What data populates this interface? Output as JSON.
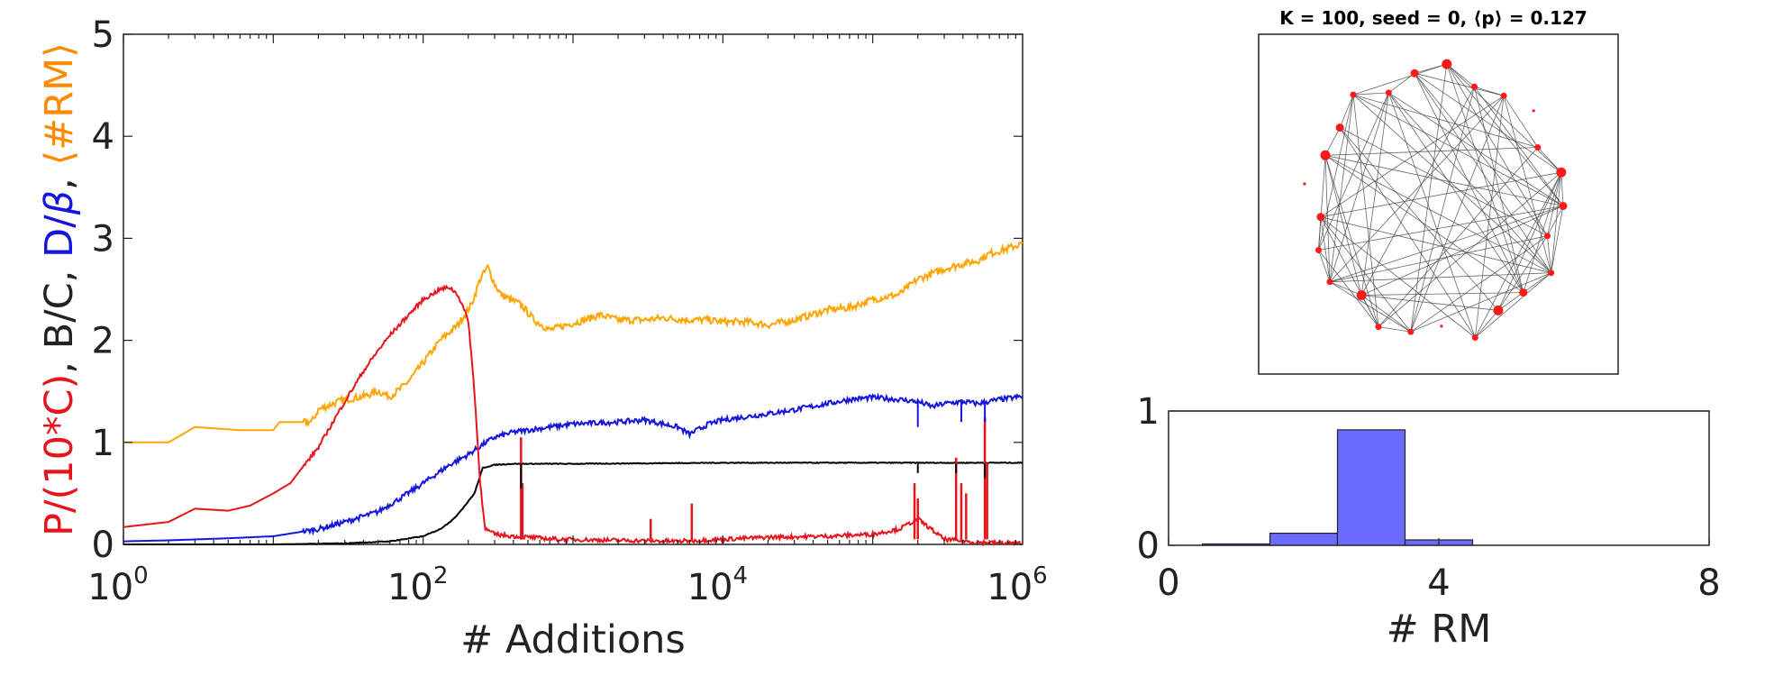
{
  "chart_data": [
    {
      "type": "line",
      "xscale": "log",
      "xlim": [
        1,
        1000000
      ],
      "ylim": [
        0,
        5
      ],
      "grid": false,
      "xlabel": "# Additions",
      "ylabel_parts": [
        {
          "text": "P/(10*C)",
          "color": "#e8141b"
        },
        {
          "text": ", B/C, ",
          "color": "#222222"
        },
        {
          "text": "D/",
          "color": "#1515e0"
        },
        {
          "text": "β",
          "color": "#1515e0",
          "italic": true
        },
        {
          "text": ", ",
          "color": "#222222"
        },
        {
          "text": "⟨#RM⟩",
          "color": "#ff8a00"
        }
      ],
      "xtick_labels": [
        {
          "value": 1,
          "base": "10",
          "exp": "0"
        },
        {
          "value": 100,
          "base": "10",
          "exp": "2"
        },
        {
          "value": 10000,
          "base": "10",
          "exp": "4"
        },
        {
          "value": 1000000,
          "base": "10",
          "exp": "6"
        }
      ],
      "ytick_labels": [
        "0",
        "1",
        "2",
        "3",
        "4",
        "5"
      ],
      "yticks": [
        0,
        1,
        2,
        3,
        4,
        5
      ],
      "series": [
        {
          "key": "rm",
          "color": "#ffa500",
          "x": [
            1,
            2,
            3,
            6,
            10,
            11,
            18,
            20,
            25,
            30,
            40,
            50,
            60,
            70,
            80,
            100,
            130,
            170,
            210,
            240,
            270,
            300,
            330,
            380,
            450,
            550,
            700,
            900,
            1200,
            1500,
            2000,
            3000,
            4000,
            6000,
            8000,
            10000,
            15000,
            20000,
            30000,
            50000,
            70000,
            100000,
            150000,
            200000,
            300000,
            400000,
            500000,
            600000,
            800000,
            1000000
          ],
          "y": [
            1.0,
            1.0,
            1.15,
            1.12,
            1.12,
            1.2,
            1.2,
            1.32,
            1.38,
            1.42,
            1.45,
            1.5,
            1.45,
            1.52,
            1.6,
            1.78,
            2.0,
            2.15,
            2.35,
            2.6,
            2.72,
            2.55,
            2.45,
            2.4,
            2.35,
            2.2,
            2.1,
            2.15,
            2.2,
            2.25,
            2.2,
            2.2,
            2.22,
            2.2,
            2.2,
            2.18,
            2.18,
            2.15,
            2.2,
            2.3,
            2.32,
            2.4,
            2.45,
            2.6,
            2.7,
            2.75,
            2.78,
            2.85,
            2.9,
            2.95
          ]
        },
        {
          "key": "d",
          "color": "#1515e0",
          "x": [
            1,
            2,
            5,
            10,
            20,
            30,
            50,
            70,
            100,
            150,
            200,
            250,
            300,
            400,
            500,
            700,
            1000,
            2000,
            3000,
            5000,
            6000,
            8000,
            10000,
            20000,
            30000,
            50000,
            70000,
            100000,
            150000,
            200000,
            250000,
            300000,
            400000,
            500000,
            700000,
            1000000
          ],
          "y": [
            0.03,
            0.04,
            0.06,
            0.08,
            0.15,
            0.22,
            0.32,
            0.45,
            0.6,
            0.78,
            0.88,
            0.98,
            1.05,
            1.1,
            1.12,
            1.15,
            1.18,
            1.2,
            1.22,
            1.15,
            1.08,
            1.18,
            1.22,
            1.28,
            1.32,
            1.38,
            1.42,
            1.44,
            1.42,
            1.4,
            1.35,
            1.38,
            1.4,
            1.38,
            1.42,
            1.45
          ]
        },
        {
          "key": "b",
          "color": "#000000",
          "x": [
            1,
            10,
            30,
            60,
            100,
            130,
            160,
            190,
            220,
            250,
            300,
            400,
            1000,
            10000,
            100000,
            1000000
          ],
          "y": [
            0.0,
            0.0,
            0.01,
            0.03,
            0.08,
            0.15,
            0.25,
            0.38,
            0.5,
            0.75,
            0.78,
            0.79,
            0.79,
            0.8,
            0.8,
            0.8
          ]
        },
        {
          "key": "p",
          "color": "#e8141b",
          "x": [
            1,
            2,
            3,
            5,
            7,
            10,
            13,
            15,
            20,
            25,
            30,
            40,
            50,
            60,
            80,
            100,
            130,
            150,
            170,
            200,
            220,
            240,
            260,
            300,
            400,
            800,
            2000,
            5000,
            10000,
            20000,
            50000,
            100000,
            150000,
            200000,
            300000,
            500000,
            1000000
          ],
          "y": [
            0.17,
            0.22,
            0.35,
            0.33,
            0.38,
            0.5,
            0.6,
            0.72,
            0.95,
            1.2,
            1.4,
            1.7,
            1.9,
            2.05,
            2.25,
            2.4,
            2.5,
            2.52,
            2.45,
            2.2,
            1.5,
            0.6,
            0.15,
            0.1,
            0.08,
            0.05,
            0.04,
            0.03,
            0.05,
            0.07,
            0.08,
            0.1,
            0.15,
            0.25,
            0.05,
            0.02,
            0.01
          ]
        }
      ],
      "spikes": {
        "p": [
          {
            "x": 450,
            "y": 1.05
          },
          {
            "x": 460,
            "y": 0.6
          },
          {
            "x": 3300,
            "y": 0.25
          },
          {
            "x": 6200,
            "y": 0.4
          },
          {
            "x": 190000,
            "y": 0.6
          },
          {
            "x": 200000,
            "y": 0.45
          },
          {
            "x": 360000,
            "y": 0.85
          },
          {
            "x": 390000,
            "y": 0.6
          },
          {
            "x": 420000,
            "y": 0.5
          },
          {
            "x": 560000,
            "y": 1.25
          },
          {
            "x": 580000,
            "y": 0.8
          }
        ],
        "b_dips": [
          {
            "x": 450,
            "y": 0.55
          },
          {
            "x": 200000,
            "y": 0.7
          },
          {
            "x": 360000,
            "y": 0.7
          },
          {
            "x": 560000,
            "y": 0.65
          }
        ],
        "d_dips": [
          {
            "x": 200000,
            "y": 1.15
          },
          {
            "x": 390000,
            "y": 1.2
          },
          {
            "x": 560000,
            "y": 1.2
          }
        ]
      }
    },
    {
      "type": "network",
      "title": "K = 100, seed = 0, ⟨p⟩ = 0.127",
      "node_count": 25,
      "node_color": "#ff1a1a",
      "edge_color": "#444444"
    },
    {
      "type": "bar",
      "xlabel": "# RM",
      "xlim": [
        0,
        8
      ],
      "ylim": [
        0,
        1
      ],
      "xtick_labels": [
        "0",
        "4",
        "8"
      ],
      "xticks": [
        0,
        4,
        8
      ],
      "ytick_labels": [
        "0",
        "1"
      ],
      "yticks": [
        0,
        1
      ],
      "bar_color": "#6b6bff",
      "categories": [
        1,
        2,
        3,
        4
      ],
      "values": [
        0.01,
        0.09,
        0.86,
        0.04
      ]
    }
  ]
}
